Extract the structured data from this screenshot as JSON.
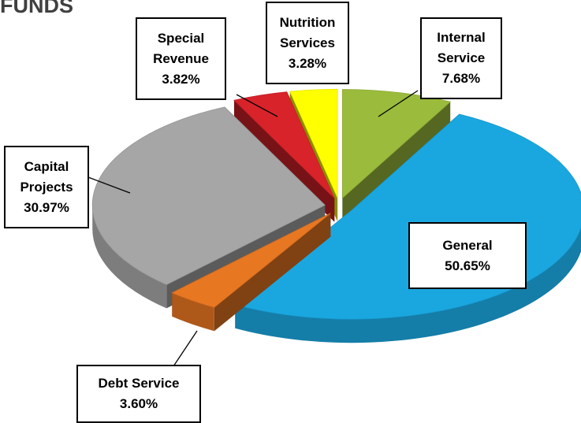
{
  "chart_data": {
    "type": "pie",
    "title": "FUNDS",
    "categories": [
      "Internal Service",
      "General",
      "Debt Service",
      "Capital Projects",
      "Special Revenue",
      "Nutrition Services"
    ],
    "values": [
      7.68,
      50.65,
      3.6,
      30.97,
      3.82,
      3.28
    ],
    "value_labels": [
      "7.68%",
      "50.65%",
      "3.60%",
      "30.97%",
      "3.82%",
      "3.28%"
    ],
    "colors": [
      "#9bbb3c",
      "#1aa7e0",
      "#e87722",
      "#a6a6a6",
      "#d8232a",
      "#ffff00"
    ]
  }
}
